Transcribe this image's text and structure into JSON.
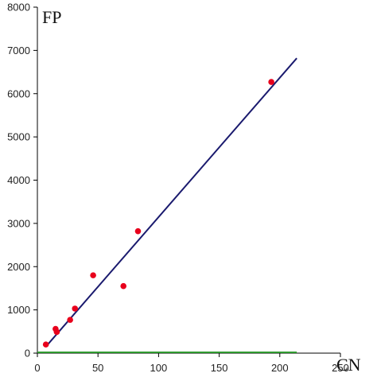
{
  "chart_data": {
    "type": "scatter",
    "title": "",
    "xlabel": "CN",
    "ylabel": "FP",
    "xlim": [
      0,
      250
    ],
    "ylim": [
      0,
      8000
    ],
    "x_ticks": [
      "0",
      "50",
      "100",
      "150",
      "200",
      "250"
    ],
    "y_ticks": [
      "0",
      "1000",
      "2000",
      "3000",
      "4000",
      "5000",
      "6000",
      "7000",
      "8000"
    ],
    "grid": false,
    "legend": "none",
    "points": [
      {
        "x": 7,
        "y": 200
      },
      {
        "x": 15,
        "y": 560
      },
      {
        "x": 16,
        "y": 490
      },
      {
        "x": 27,
        "y": 770
      },
      {
        "x": 31,
        "y": 1030
      },
      {
        "x": 46,
        "y": 1800
      },
      {
        "x": 71,
        "y": 1550
      },
      {
        "x": 83,
        "y": 2820
      },
      {
        "x": 193,
        "y": 6270
      }
    ],
    "fit_line": {
      "x": [
        7,
        214
      ],
      "y": [
        150,
        6820
      ]
    },
    "baseline_line": {
      "x": [
        0,
        214
      ],
      "y": [
        0,
        0
      ]
    },
    "colors": {
      "points": "#e8001c",
      "fit_line": "#1a1a6e",
      "baseline_line": "#2e9a2e",
      "axis": "#000000"
    }
  }
}
